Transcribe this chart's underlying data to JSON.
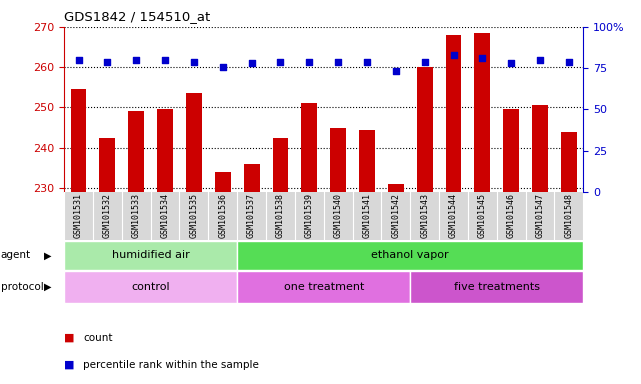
{
  "title": "GDS1842 / 154510_at",
  "samples": [
    "GSM101531",
    "GSM101532",
    "GSM101533",
    "GSM101534",
    "GSM101535",
    "GSM101536",
    "GSM101537",
    "GSM101538",
    "GSM101539",
    "GSM101540",
    "GSM101541",
    "GSM101542",
    "GSM101543",
    "GSM101544",
    "GSM101545",
    "GSM101546",
    "GSM101547",
    "GSM101548"
  ],
  "counts": [
    254.5,
    242.5,
    249.0,
    249.5,
    253.5,
    234.0,
    236.0,
    242.5,
    251.0,
    245.0,
    244.5,
    231.0,
    260.0,
    268.0,
    268.5,
    249.5,
    250.5,
    244.0
  ],
  "percentile": [
    80,
    79,
    80,
    80,
    79,
    76,
    78,
    79,
    79,
    79,
    79,
    73,
    79,
    83,
    81,
    78,
    80,
    79
  ],
  "bar_color": "#cc0000",
  "dot_color": "#0000cc",
  "ylim_left": [
    229,
    270
  ],
  "ylim_right": [
    0,
    100
  ],
  "yticks_left": [
    230,
    240,
    250,
    260,
    270
  ],
  "yticks_right": [
    0,
    25,
    50,
    75,
    100
  ],
  "ylabel_left_color": "#cc0000",
  "ylabel_right_color": "#0000cc",
  "agent_labels": [
    {
      "text": "humidified air",
      "start": 0,
      "end": 6,
      "color": "#aaeaaa"
    },
    {
      "text": "ethanol vapor",
      "start": 6,
      "end": 18,
      "color": "#55dd55"
    }
  ],
  "protocol_labels": [
    {
      "text": "control",
      "start": 0,
      "end": 6,
      "color": "#f0b0f0"
    },
    {
      "text": "one treatment",
      "start": 6,
      "end": 12,
      "color": "#e070e0"
    },
    {
      "text": "five treatments",
      "start": 12,
      "end": 18,
      "color": "#cc55cc"
    }
  ],
  "legend_count_color": "#cc0000",
  "legend_dot_color": "#0000cc",
  "bg_color": "#ffffff",
  "tick_label_bg": "#d8d8d8",
  "right_ytick_labels": [
    "0",
    "25",
    "50",
    "75",
    "100%"
  ]
}
